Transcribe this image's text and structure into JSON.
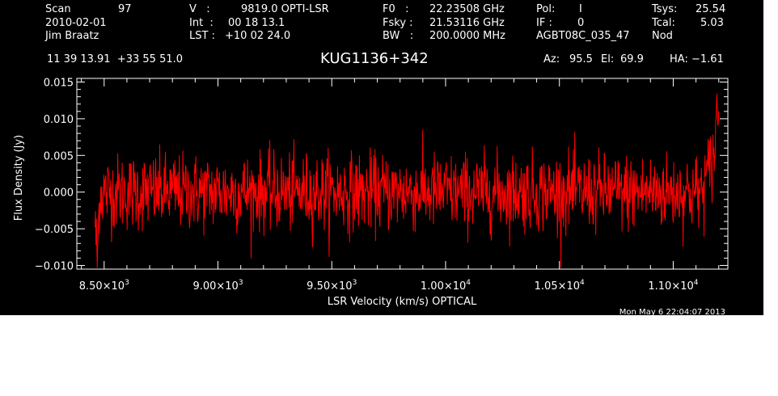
{
  "header": {
    "scan_label": "Scan",
    "scan_value": "97",
    "date": "2010-02-01",
    "observer": "Jim Braatz",
    "v_label": "V   :",
    "v_value": "9819.0 OPTI-LSR",
    "int_label": "Int  :",
    "int_value": "00 18 13.1",
    "lst_label": "LST :",
    "lst_value": "+10 02 24.0",
    "f0_label": "F0   :",
    "f0_value": "22.23508 GHz",
    "fsky_label": "Fsky :",
    "fsky_value": "21.53116 GHz",
    "bw_label": "BW   :",
    "bw_value": "200.0000 MHz",
    "pol_label": "Pol:",
    "pol_value": "I",
    "if_label": "IF :",
    "if_value": "0",
    "project": "AGBT08C_035_47",
    "tsys_label": "Tsys:",
    "tsys_value": "25.54",
    "tcal_label": "Tcal:",
    "tcal_value": "5.03",
    "mode": "Nod",
    "coords": "11 39 13.91  +33 55 51.0",
    "source": "KUG1136+342",
    "az_label": "Az:",
    "az_value": "95.5",
    "el_label": "El:",
    "el_value": "69.9",
    "ha_label": "HA:",
    "ha_value": "−1.61",
    "timestamp": "Mon May  6 22:04:07 2013"
  },
  "chart_data": {
    "type": "line",
    "xlabel": "LSR Velocity (km/s) OPTICAL",
    "ylabel": "Flux Density (Jy)",
    "xlim": [
      8380,
      11240
    ],
    "ylim": [
      -0.0105,
      0.0155
    ],
    "x_ticks": [
      {
        "value": 8500,
        "mant": "8.50",
        "exp": "3"
      },
      {
        "value": 9000,
        "mant": "9.00",
        "exp": "3"
      },
      {
        "value": 9500,
        "mant": "9.50",
        "exp": "3"
      },
      {
        "value": 10000,
        "mant": "1.00",
        "exp": "4"
      },
      {
        "value": 10500,
        "mant": "1.05",
        "exp": "4"
      },
      {
        "value": 11000,
        "mant": "1.10",
        "exp": "4"
      }
    ],
    "y_ticks": [
      {
        "value": -0.01,
        "label": "−0.010"
      },
      {
        "value": -0.005,
        "label": "−0.005"
      },
      {
        "value": 0.0,
        "label": "0.000"
      },
      {
        "value": 0.005,
        "label": "0.005"
      },
      {
        "value": 0.01,
        "label": "0.010"
      },
      {
        "value": 0.015,
        "label": "0.015"
      }
    ],
    "series": [
      {
        "color": "#ff0000",
        "x_start": 8460,
        "x_end": 11200,
        "noise_rms": 0.0026,
        "points": 1400,
        "anchors": [
          [
            8460,
            -0.004
          ],
          [
            8470,
            -0.0095
          ],
          [
            8480,
            0.0
          ],
          [
            11140,
            0.0015
          ],
          [
            11170,
            0.004
          ],
          [
            11185,
            0.0065
          ],
          [
            11195,
            0.013
          ],
          [
            11200,
            0.009
          ]
        ]
      }
    ]
  }
}
